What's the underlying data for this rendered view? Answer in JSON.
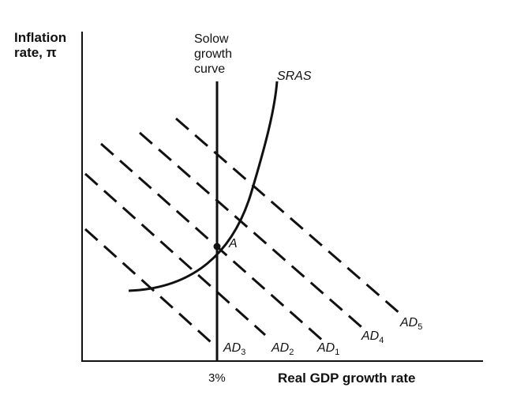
{
  "y_axis": {
    "title_line1": "Inflation",
    "title_line2": "rate, π"
  },
  "x_axis": {
    "title": "Real GDP growth rate",
    "tick": "3%"
  },
  "solow": {
    "line1": "Solow",
    "line2": "growth",
    "line3": "curve"
  },
  "sras": {
    "label": "SRAS"
  },
  "equilibrium": {
    "label": "A"
  },
  "ad_curves": [
    {
      "base": "AD",
      "sub": "3"
    },
    {
      "base": "AD",
      "sub": "2"
    },
    {
      "base": "AD",
      "sub": "1"
    },
    {
      "base": "AD",
      "sub": "4"
    },
    {
      "base": "AD",
      "sub": "5"
    }
  ],
  "colors": {
    "ink": "#111111",
    "background": "#ffffff"
  }
}
